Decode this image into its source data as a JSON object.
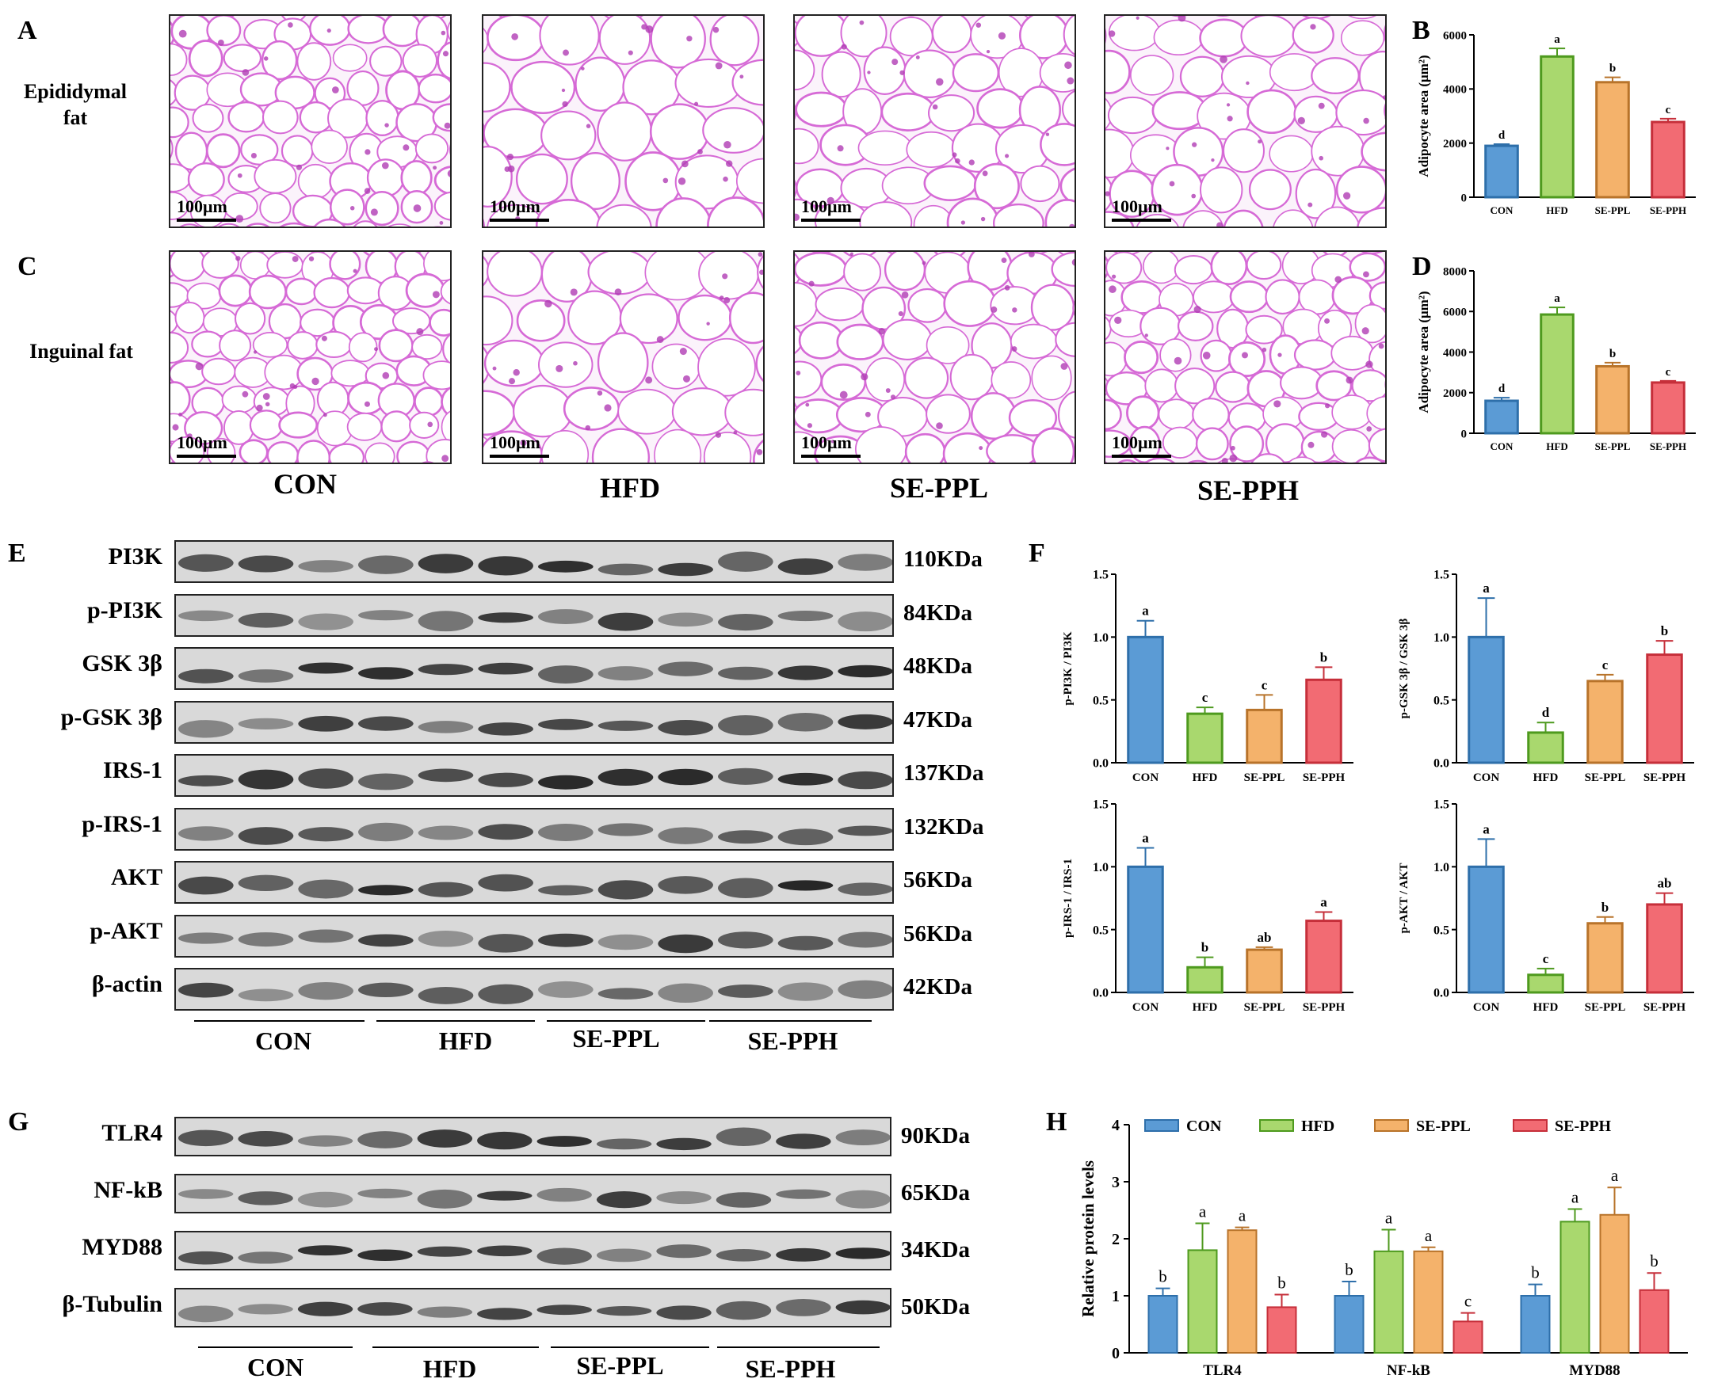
{
  "panels": {
    "A": "A",
    "B": "B",
    "C": "C",
    "D": "D",
    "E": "E",
    "F": "F",
    "G": "G",
    "H": "H"
  },
  "row_titles": {
    "epididymal": "Epididymal\nfat",
    "inguinal": "Inguinal fat"
  },
  "scale_bar": "100μm",
  "groups": [
    "CON",
    "HFD",
    "SE-PPL",
    "SE-PPH"
  ],
  "western_E": {
    "proteins": [
      "PI3K",
      "p-PI3K",
      "GSK 3β",
      "p-GSK 3β",
      "IRS-1",
      "p-IRS-1",
      "AKT",
      "p-AKT",
      "β-actin"
    ],
    "sizes": [
      "110KDa",
      "84KDa",
      "48KDa",
      "47KDa",
      "137KDa",
      "132KDa",
      "56KDa",
      "56KDa",
      "42KDa"
    ]
  },
  "western_G": {
    "proteins": [
      "TLR4",
      "NF-kB",
      "MYD88",
      "β-Tubulin"
    ],
    "sizes": [
      "90KDa",
      "65KDa",
      "34KDa",
      "50KDa"
    ]
  },
  "colors": {
    "CON": "#5b9bd5",
    "HFD": "#a9d86e",
    "SE-PPL": "#f4b26b",
    "SE-PPH": "#f26b73",
    "CON_edge": "#2e6faa",
    "HFD_edge": "#4e9a1e",
    "SE-PPL_edge": "#b8732a",
    "SE-PPH_edge": "#c62f3a"
  },
  "chart_data": [
    {
      "id": "B",
      "type": "bar",
      "ylabel": "Adipocyte area (μm²)",
      "categories": [
        "CON",
        "HFD",
        "SE-PPL",
        "SE-PPH"
      ],
      "values": [
        1900,
        5200,
        4250,
        2780
      ],
      "errors": [
        60,
        300,
        180,
        120
      ],
      "letters": [
        "d",
        "a",
        "b",
        "c"
      ],
      "ylim": [
        0,
        6000
      ],
      "yticks": [
        "0",
        "2000",
        "4000",
        "6000"
      ]
    },
    {
      "id": "D",
      "type": "bar",
      "ylabel": "Adipocyte area (μm²)",
      "categories": [
        "CON",
        "HFD",
        "SE-PPL",
        "SE-PPH"
      ],
      "values": [
        1600,
        5850,
        3300,
        2500
      ],
      "errors": [
        150,
        350,
        180,
        80
      ],
      "letters": [
        "d",
        "a",
        "b",
        "c"
      ],
      "ylim": [
        0,
        8000
      ],
      "yticks": [
        "0",
        "2000",
        "4000",
        "6000",
        "8000"
      ]
    },
    {
      "id": "F1",
      "type": "bar",
      "ylabel": "p-PI3K / PI3K",
      "categories": [
        "CON",
        "HFD",
        "SE-PPL",
        "SE-PPH"
      ],
      "values": [
        1.0,
        0.39,
        0.42,
        0.66
      ],
      "errors": [
        0.13,
        0.05,
        0.12,
        0.1
      ],
      "letters": [
        "a",
        "c",
        "c",
        "b"
      ],
      "ylim": [
        0,
        1.5
      ],
      "yticks": [
        "0.0",
        "0.5",
        "1.0",
        "1.5"
      ]
    },
    {
      "id": "F2",
      "type": "bar",
      "ylabel": "p-GSK 3β / GSK 3β",
      "categories": [
        "CON",
        "HFD",
        "SE-PPL",
        "SE-PPH"
      ],
      "values": [
        1.0,
        0.24,
        0.65,
        0.86
      ],
      "errors": [
        0.31,
        0.08,
        0.05,
        0.11
      ],
      "letters": [
        "a",
        "d",
        "c",
        "b"
      ],
      "ylim": [
        0,
        1.5
      ],
      "yticks": [
        "0.0",
        "0.5",
        "1.0",
        "1.5"
      ]
    },
    {
      "id": "F3",
      "type": "bar",
      "ylabel": "p-IRS-1 / IRS-1",
      "categories": [
        "CON",
        "HFD",
        "SE-PPL",
        "SE-PPH"
      ],
      "values": [
        1.0,
        0.2,
        0.34,
        0.57
      ],
      "errors": [
        0.15,
        0.08,
        0.02,
        0.07
      ],
      "letters": [
        "a",
        "b",
        "ab",
        "a"
      ],
      "ylim": [
        0,
        1.5
      ],
      "yticks": [
        "0.0",
        "0.5",
        "1.0",
        "1.5"
      ]
    },
    {
      "id": "F4",
      "type": "bar",
      "ylabel": "p-AKT / AKT",
      "categories": [
        "CON",
        "HFD",
        "SE-PPL",
        "SE-PPH"
      ],
      "values": [
        1.0,
        0.14,
        0.55,
        0.7
      ],
      "errors": [
        0.22,
        0.05,
        0.05,
        0.09
      ],
      "letters": [
        "a",
        "c",
        "b",
        "ab"
      ],
      "ylim": [
        0,
        1.5
      ],
      "yticks": [
        "0.0",
        "0.5",
        "1.0",
        "1.5"
      ]
    },
    {
      "id": "H",
      "type": "bar",
      "ylabel": "Relative protein levels",
      "categories": [
        "TLR4",
        "NF-kB",
        "MYD88"
      ],
      "legend": [
        "CON",
        "HFD",
        "SE-PPL",
        "SE-PPH"
      ],
      "series": [
        {
          "name": "CON",
          "values": [
            1.0,
            1.0,
            1.0
          ],
          "errors": [
            0.13,
            0.25,
            0.2
          ],
          "letters": [
            "b",
            "b",
            "b"
          ]
        },
        {
          "name": "HFD",
          "values": [
            1.8,
            1.78,
            2.3
          ],
          "errors": [
            0.47,
            0.38,
            0.22
          ],
          "letters": [
            "a",
            "a",
            "a"
          ]
        },
        {
          "name": "SE-PPL",
          "values": [
            2.15,
            1.78,
            2.42
          ],
          "errors": [
            0.05,
            0.07,
            0.48
          ],
          "letters": [
            "a",
            "a",
            "a"
          ]
        },
        {
          "name": "SE-PPH",
          "values": [
            0.8,
            0.55,
            1.1
          ],
          "errors": [
            0.22,
            0.15,
            0.3
          ],
          "letters": [
            "b",
            "c",
            "b"
          ]
        }
      ],
      "ylim": [
        0,
        4
      ],
      "yticks": [
        "0",
        "1",
        "2",
        "3",
        "4"
      ]
    }
  ]
}
